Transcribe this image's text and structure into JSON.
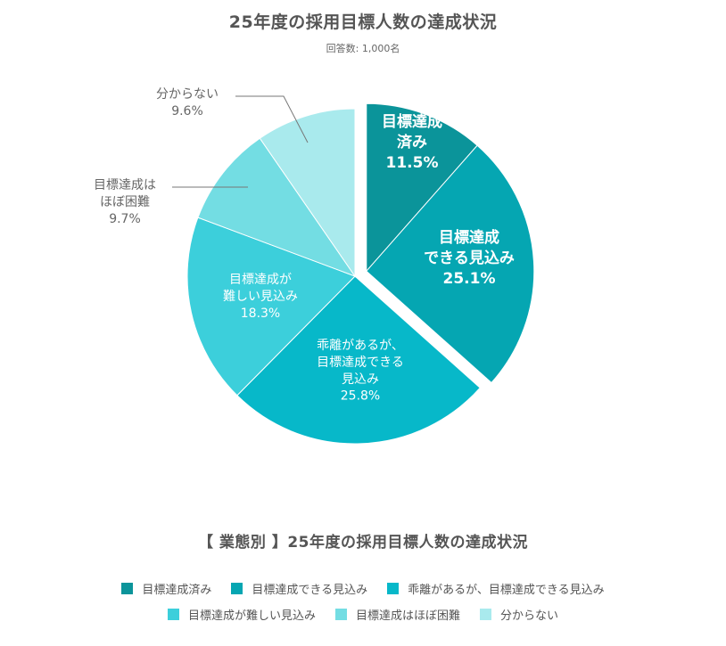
{
  "title": "25年度の採用目標人数の達成状況",
  "subtitle": "回答数: 1,000名",
  "chart_data": {
    "type": "pie",
    "title": "25年度の採用目標人数の達成状況",
    "slices": [
      {
        "name": "目標達成済み",
        "label_lines": [
          "目標達成",
          "済み"
        ],
        "value": 11.5,
        "value_label": "11.5%",
        "color": "#0b949a",
        "exploded": true
      },
      {
        "name": "目標達成できる見込み",
        "label_lines": [
          "目標達成",
          "できる見込み"
        ],
        "value": 25.1,
        "value_label": "25.1%",
        "color": "#05a6b2",
        "exploded": true
      },
      {
        "name": "乖離があるが、目標達成できる見込み",
        "label_lines": [
          "乖離があるが、",
          "目標達成できる",
          "見込み"
        ],
        "value": 25.8,
        "value_label": "25.8%",
        "color": "#07b8c9",
        "exploded": false
      },
      {
        "name": "目標達成が難しい見込み",
        "label_lines": [
          "目標達成が",
          "難しい見込み"
        ],
        "value": 18.3,
        "value_label": "18.3%",
        "color": "#3ccfdb",
        "exploded": false
      },
      {
        "name": "目標達成はほぼ困難",
        "label_lines": [
          "目標達成は",
          "ほぼ困難"
        ],
        "value": 9.7,
        "value_label": "9.7%",
        "color": "#73dde3",
        "exploded": false
      },
      {
        "name": "分からない",
        "label_lines": [
          "分からない"
        ],
        "value": 9.6,
        "value_label": "9.6%",
        "color": "#a9eaed",
        "exploded": false
      }
    ],
    "legend_placement": "bottom"
  },
  "bottom_title": "【 業態別 】25年度の採用目標人数の達成状況",
  "legend": {
    "row1": [
      {
        "label": "目標達成済み",
        "color": "#0b949a"
      },
      {
        "label": "目標達成できる見込み",
        "color": "#05a6b2"
      },
      {
        "label": "乖離があるが、目標達成できる見込み",
        "color": "#07b8c9"
      }
    ],
    "row2": [
      {
        "label": "目標達成が難しい見込み",
        "color": "#3ccfdb"
      },
      {
        "label": "目標達成はほぼ困難",
        "color": "#73dde3"
      },
      {
        "label": "分からない",
        "color": "#a9eaed"
      }
    ]
  }
}
